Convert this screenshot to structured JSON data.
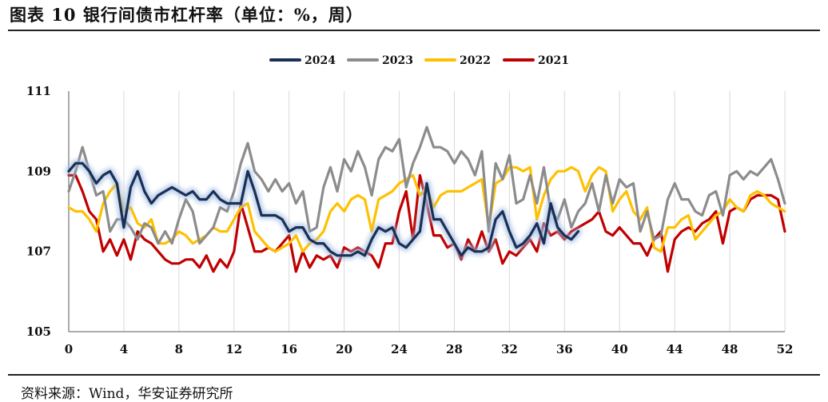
{
  "title": "图表 10 银行间债市杠杆率（单位：%，周）",
  "source": "资料来源：Wind，华安证券研究所",
  "chart_data": {
    "type": "line",
    "title": "图表 10 银行间债市杠杆率（单位：%，周）",
    "xlabel": "",
    "ylabel": "",
    "xlim": [
      0,
      52
    ],
    "ylim": [
      105,
      111
    ],
    "x_ticks": [
      0,
      4,
      8,
      12,
      16,
      20,
      24,
      28,
      32,
      36,
      40,
      44,
      48,
      52
    ],
    "y_ticks": [
      105,
      107,
      109,
      111
    ],
    "grid": "vertical",
    "legend": "top-center",
    "series": [
      {
        "name": "2024",
        "color": "#1a2f55",
        "glow": true,
        "x": [
          0,
          0.5,
          1,
          1.5,
          2,
          2.5,
          3,
          3.5,
          4,
          4.5,
          5,
          5.5,
          6,
          6.5,
          7,
          7.5,
          8,
          8.5,
          9,
          9.5,
          10,
          10.5,
          11,
          11.5,
          12,
          12.5,
          13,
          13.5,
          14,
          14.5,
          15,
          15.5,
          16,
          16.5,
          17,
          17.5,
          18,
          18.5,
          19,
          19.5,
          20,
          20.5,
          21,
          21.5,
          22,
          22.5,
          23,
          23.5,
          24,
          24.5,
          25,
          25.5,
          26,
          26.5,
          27,
          27.5,
          28,
          28.5,
          29,
          29.5,
          30,
          30.5,
          31,
          31.5,
          32,
          32.5,
          33,
          33.5,
          34,
          34.5,
          35,
          35.5,
          36,
          36.5,
          37
        ],
        "values": [
          109.0,
          109.2,
          109.2,
          109.0,
          108.7,
          108.9,
          109.0,
          108.7,
          107.6,
          108.6,
          109.0,
          108.5,
          108.2,
          108.4,
          108.5,
          108.6,
          108.5,
          108.4,
          108.5,
          108.3,
          108.3,
          108.5,
          108.3,
          108.2,
          108.2,
          108.2,
          109.0,
          108.5,
          107.9,
          107.9,
          107.9,
          107.8,
          107.5,
          107.6,
          107.6,
          107.3,
          107.2,
          107.2,
          107.0,
          106.9,
          106.9,
          106.9,
          107.0,
          106.9,
          107.3,
          107.6,
          107.5,
          107.6,
          107.2,
          107.1,
          107.3,
          107.5,
          108.7,
          107.8,
          107.8,
          107.5,
          107.2,
          106.9,
          107.1,
          107.0,
          107.0,
          107.1,
          107.8,
          108.0,
          107.5,
          107.1,
          107.2,
          107.4,
          107.7,
          107.2,
          108.2,
          107.6,
          107.4,
          107.3,
          107.5
        ]
      },
      {
        "name": "2023",
        "color": "#8c8c8c",
        "glow": false,
        "x": [
          0,
          0.5,
          1,
          1.5,
          2,
          2.5,
          3,
          3.5,
          4,
          4.5,
          5,
          5.5,
          6,
          6.5,
          7,
          7.5,
          8,
          8.5,
          9,
          9.5,
          10,
          10.5,
          11,
          11.5,
          12,
          12.5,
          13,
          13.5,
          14,
          14.5,
          15,
          15.5,
          16,
          16.5,
          17,
          17.5,
          18,
          18.5,
          19,
          19.5,
          20,
          20.5,
          21,
          21.5,
          22,
          22.5,
          23,
          23.5,
          24,
          24.5,
          25,
          25.5,
          26,
          26.5,
          27,
          27.5,
          28,
          28.5,
          29,
          29.5,
          30,
          30.5,
          31,
          31.5,
          32,
          32.5,
          33,
          33.5,
          34,
          34.5,
          35,
          35.5,
          36,
          36.5,
          37,
          37.5,
          38,
          38.5,
          39,
          39.5,
          40,
          40.5,
          41,
          41.5,
          42,
          42.5,
          43,
          43.5,
          44,
          44.5,
          45,
          45.5,
          46,
          46.5,
          47,
          47.5,
          48,
          48.5,
          49,
          49.5,
          50,
          50.5,
          51,
          51.5,
          52
        ],
        "values": [
          108.5,
          109.0,
          109.6,
          109.0,
          108.4,
          108.5,
          107.5,
          107.8,
          107.8,
          107.6,
          107.3,
          107.7,
          107.6,
          107.2,
          107.5,
          107.2,
          107.8,
          108.3,
          108.0,
          107.2,
          107.4,
          107.6,
          108.1,
          108.0,
          108.5,
          109.2,
          109.7,
          109.0,
          108.8,
          108.5,
          108.8,
          108.5,
          108.7,
          108.2,
          108.5,
          107.5,
          107.6,
          108.6,
          109.1,
          108.5,
          109.3,
          109.0,
          109.5,
          109.1,
          108.4,
          109.3,
          109.6,
          109.5,
          109.8,
          108.6,
          109.2,
          109.6,
          110.1,
          109.6,
          109.6,
          109.5,
          109.2,
          109.5,
          109.3,
          108.9,
          109.5,
          107.5,
          109.2,
          108.8,
          109.4,
          108.2,
          108.3,
          108.9,
          108.2,
          109.1,
          108.0,
          107.8,
          108.3,
          107.6,
          108.0,
          108.2,
          108.7,
          108.0,
          108.9,
          108.2,
          108.8,
          108.6,
          108.7,
          107.5,
          108.0,
          107.3,
          107.4,
          108.3,
          108.7,
          108.3,
          108.3,
          108.0,
          107.9,
          108.4,
          108.5,
          107.9,
          108.9,
          109.0,
          108.8,
          109.0,
          108.9,
          109.1,
          109.3,
          108.8,
          108.2
        ],
        "note": ""
      },
      {
        "name": "2022",
        "color": "#ffc000",
        "glow": false,
        "x": [
          0,
          0.5,
          1,
          1.5,
          2,
          2.5,
          3,
          3.5,
          4,
          4.5,
          5,
          5.5,
          6,
          6.5,
          7,
          7.5,
          8,
          8.5,
          9,
          9.5,
          10,
          10.5,
          11,
          11.5,
          12,
          12.5,
          13,
          13.5,
          14,
          14.5,
          15,
          15.5,
          16,
          16.5,
          17,
          17.5,
          18,
          18.5,
          19,
          19.5,
          20,
          20.5,
          21,
          21.5,
          22,
          22.5,
          23,
          23.5,
          24,
          24.5,
          25,
          25.5,
          26,
          26.5,
          27,
          27.5,
          28,
          28.5,
          29,
          29.5,
          30,
          30.5,
          31,
          31.5,
          32,
          32.5,
          33,
          33.5,
          34,
          34.5,
          35,
          35.5,
          36,
          36.5,
          37,
          37.5,
          38,
          38.5,
          39,
          39.5,
          40,
          40.5,
          41,
          41.5,
          42,
          42.5,
          43,
          43.5,
          44,
          44.5,
          45,
          45.5,
          46,
          46.5,
          47,
          47.5,
          48,
          48.5,
          49,
          49.5,
          50,
          50.5,
          51,
          51.5,
          52
        ],
        "values": [
          108.1,
          108.0,
          108.0,
          107.8,
          107.5,
          108.2,
          108.5,
          108.7,
          108.0,
          108.1,
          107.7,
          107.6,
          107.8,
          107.2,
          107.2,
          107.3,
          107.5,
          107.4,
          107.2,
          107.3,
          107.4,
          107.6,
          107.5,
          107.5,
          107.8,
          108.1,
          108.2,
          107.5,
          107.3,
          107.1,
          107.0,
          107.1,
          107.2,
          107.4,
          107.0,
          107.2,
          107.3,
          107.5,
          108.0,
          108.2,
          108.0,
          108.3,
          108.4,
          108.3,
          107.5,
          108.3,
          108.4,
          108.5,
          108.7,
          108.8,
          108.9,
          108.4,
          108.6,
          108.1,
          108.4,
          108.5,
          108.5,
          108.5,
          108.6,
          108.7,
          108.8,
          107.6,
          108.7,
          108.8,
          109.1,
          109.1,
          109.0,
          109.1,
          107.8,
          108.4,
          108.8,
          109.0,
          109.0,
          109.1,
          109.0,
          108.5,
          108.9,
          109.1,
          109.0,
          108.0,
          108.3,
          108.5,
          108.0,
          107.8,
          108.1,
          107.1,
          107.0,
          107.6,
          107.6,
          107.8,
          107.9,
          107.3,
          107.5,
          107.7,
          107.9,
          108.0,
          108.3,
          108.1,
          108.0,
          108.4,
          108.5,
          108.4,
          108.2,
          108.1,
          108.0
        ],
        "note": ""
      },
      {
        "name": "2021",
        "color": "#c00000",
        "glow": false,
        "x": [
          0,
          0.5,
          1,
          1.5,
          2,
          2.5,
          3,
          3.5,
          4,
          4.5,
          5,
          5.5,
          6,
          6.5,
          7,
          7.5,
          8,
          8.5,
          9,
          9.5,
          10,
          10.5,
          11,
          11.5,
          12,
          12.5,
          13,
          13.5,
          14,
          14.5,
          15,
          15.5,
          16,
          16.5,
          17,
          17.5,
          18,
          18.5,
          19,
          19.5,
          20,
          20.5,
          21,
          21.5,
          22,
          22.5,
          23,
          23.5,
          24,
          24.5,
          25,
          25.5,
          26,
          26.5,
          27,
          27.5,
          28,
          28.5,
          29,
          29.5,
          30,
          30.5,
          31,
          31.5,
          32,
          32.5,
          33,
          33.5,
          34,
          34.5,
          35,
          35.5,
          36,
          36.5,
          37,
          37.5,
          38,
          38.5,
          39,
          39.5,
          40,
          40.5,
          41,
          41.5,
          42,
          42.5,
          43,
          43.5,
          44,
          44.5,
          45,
          45.5,
          46,
          46.5,
          47,
          47.5,
          48,
          48.5,
          49,
          49.5,
          50,
          50.5,
          51,
          51.5,
          52
        ],
        "values": [
          108.9,
          108.9,
          108.5,
          108.0,
          107.8,
          107.0,
          107.3,
          106.9,
          107.3,
          106.8,
          107.5,
          107.3,
          107.2,
          107.0,
          106.8,
          106.7,
          106.7,
          106.8,
          106.8,
          106.6,
          106.9,
          106.5,
          106.8,
          106.6,
          107.0,
          108.2,
          107.6,
          107.0,
          107.0,
          107.1,
          107.0,
          107.2,
          107.4,
          106.5,
          107.0,
          106.6,
          106.9,
          106.8,
          106.9,
          106.6,
          107.1,
          107.0,
          107.1,
          107.0,
          106.9,
          106.6,
          107.2,
          107.2,
          108.0,
          108.5,
          107.3,
          108.9,
          108.2,
          107.4,
          107.4,
          107.1,
          107.2,
          106.8,
          107.3,
          107.0,
          107.5,
          107.0,
          107.3,
          106.7,
          107.0,
          106.9,
          107.1,
          107.3,
          107.0,
          107.7,
          107.4,
          107.5,
          107.3,
          107.5,
          107.6,
          107.7,
          107.8,
          108.0,
          107.5,
          107.4,
          107.6,
          107.4,
          107.2,
          107.2,
          106.9,
          107.3,
          107.5,
          106.5,
          107.3,
          107.5,
          107.6,
          107.5,
          107.7,
          107.8,
          108.0,
          107.2,
          108.0,
          108.1,
          108.0,
          108.3,
          108.4,
          108.4,
          108.4,
          108.3,
          107.5
        ],
        "note": ""
      }
    ]
  }
}
